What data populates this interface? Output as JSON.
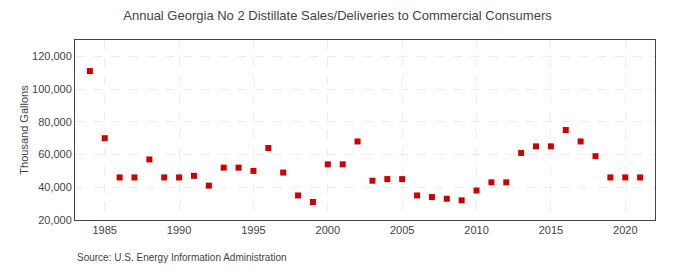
{
  "chart_data": {
    "type": "scatter",
    "title": "Annual Georgia No 2 Distillate Sales/Deliveries to Commercial Consumers",
    "y_label": "Thousand Gallons",
    "annotations": [
      "Source: U.S. Energy Information Administration"
    ],
    "x": [
      1984,
      1985,
      1986,
      1987,
      1988,
      1989,
      1990,
      1991,
      1992,
      1993,
      1994,
      1995,
      1996,
      1997,
      1998,
      1999,
      2000,
      2001,
      2002,
      2003,
      2004,
      2005,
      2006,
      2007,
      2008,
      2009,
      2010,
      2011,
      2012,
      2013,
      2014,
      2015,
      2016,
      2017,
      2018,
      2019,
      2020,
      2021
    ],
    "values": [
      111000,
      70000,
      46000,
      46000,
      57000,
      46000,
      46000,
      47000,
      41000,
      52000,
      52000,
      50000,
      64000,
      49000,
      35000,
      31000,
      54000,
      54000,
      68000,
      44000,
      45000,
      45000,
      35000,
      34000,
      33000,
      32000,
      38000,
      43000,
      43000,
      61000,
      65000,
      65000,
      75000,
      68000,
      59000,
      46000,
      46000,
      46000
    ],
    "color": "#cc0000",
    "marker": "square",
    "xlim": [
      1983,
      2022
    ],
    "ylim": [
      20000,
      130000
    ],
    "xticks": [
      1985,
      1990,
      1995,
      2000,
      2005,
      2010,
      2015,
      2020
    ],
    "yticks": [
      {
        "value": 20000,
        "label": "20,000"
      },
      {
        "value": 40000,
        "label": "40,000"
      },
      {
        "value": 60000,
        "label": "60,000"
      },
      {
        "value": 80000,
        "label": "80,000"
      },
      {
        "value": 100000,
        "label": "100,000"
      },
      {
        "value": 120000,
        "label": "120,000"
      }
    ],
    "grid": true
  }
}
